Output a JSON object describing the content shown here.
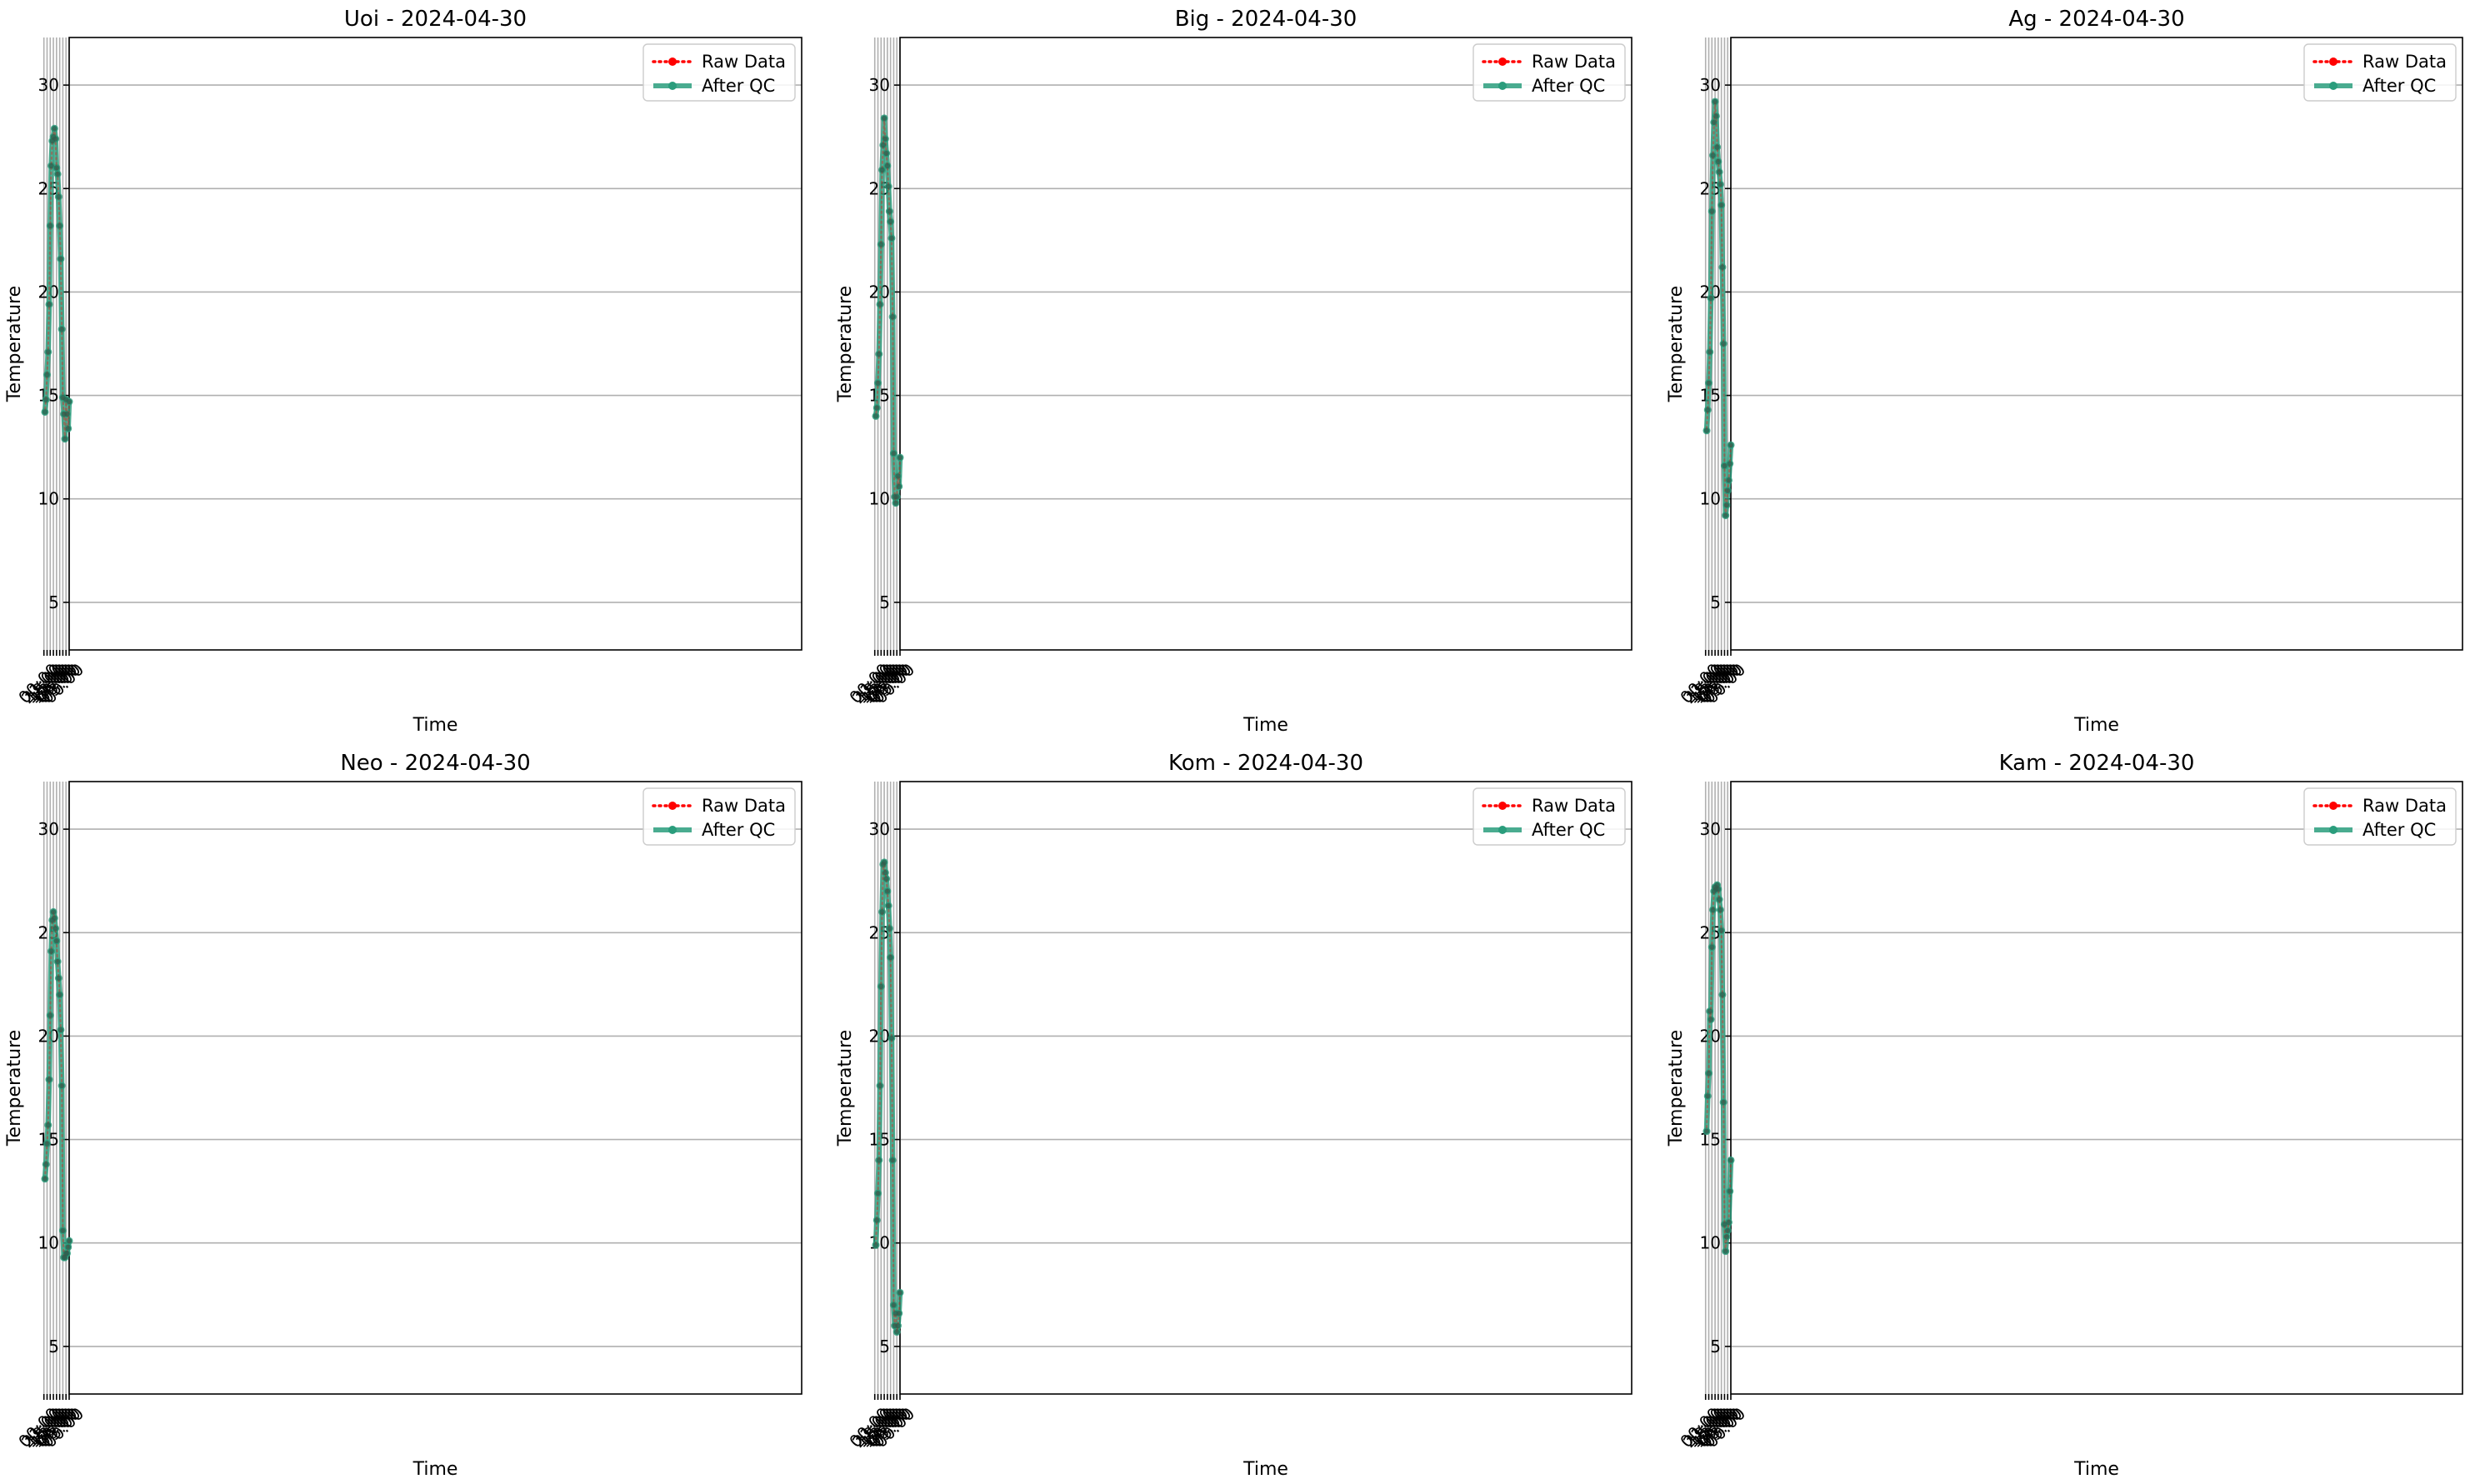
{
  "chart_data": [
    {
      "type": "line",
      "title": "Uoi - 2024-04-30",
      "xlabel": "Time",
      "ylabel": "Temperature",
      "x_ticks": [
        "00:00",
        "03:00",
        "06:00",
        "09:00",
        "12:00",
        "15:00",
        "18:00",
        "21:00",
        "00:00"
      ],
      "y_ticks": [
        5,
        10,
        15,
        20,
        25,
        30
      ],
      "ylim": [
        2.7,
        32.3
      ],
      "xlim": [
        "2024-04-30 00:00",
        "2024-05-01 00:00"
      ],
      "grid": true,
      "legend_position": "top-right",
      "x": [
        "00:00",
        "01:00",
        "02:00",
        "03:00",
        "04:00",
        "05:00",
        "06:00",
        "07:00",
        "08:00",
        "09:00",
        "10:00",
        "11:00",
        "12:00",
        "13:00",
        "14:00",
        "15:00",
        "16:00",
        "17:00",
        "18:00",
        "19:00",
        "20:00",
        "21:00",
        "22:00",
        "23:00"
      ],
      "series": [
        {
          "name": "Raw Data",
          "style": "dotted",
          "color": "#ff0000",
          "values": [
            14.7,
            13.4,
            14.1,
            14.8,
            12.9,
            14.1,
            14.9,
            18.2,
            21.6,
            23.2,
            24.6,
            25.7,
            26.0,
            27.4,
            27.9,
            27.5,
            27.3,
            26.1,
            23.2,
            19.4,
            17.1,
            16.0,
            14.8,
            14.2
          ]
        },
        {
          "name": "After QC",
          "style": "solid",
          "color": "#2a9d7c",
          "values": [
            14.7,
            13.4,
            14.1,
            14.8,
            12.9,
            14.1,
            14.9,
            18.2,
            21.6,
            23.2,
            24.6,
            25.7,
            26.0,
            27.4,
            27.9,
            27.5,
            27.3,
            26.1,
            23.2,
            19.4,
            17.1,
            16.0,
            14.8,
            14.2
          ]
        }
      ]
    },
    {
      "type": "line",
      "title": "Big - 2024-04-30",
      "xlabel": "Time",
      "ylabel": "Temperature",
      "x_ticks": [
        "00:00",
        "03:00",
        "06:00",
        "09:00",
        "12:00",
        "15:00",
        "18:00",
        "21:00",
        "00:00"
      ],
      "y_ticks": [
        5,
        10,
        15,
        20,
        25,
        30
      ],
      "ylim": [
        2.7,
        32.3
      ],
      "xlim": [
        "2024-04-30 00:00",
        "2024-05-01 00:00"
      ],
      "grid": true,
      "legend_position": "top-right",
      "x": [
        "00:00",
        "01:00",
        "02:00",
        "03:00",
        "04:00",
        "05:00",
        "06:00",
        "07:00",
        "08:00",
        "09:00",
        "10:00",
        "11:00",
        "12:00",
        "13:00",
        "14:00",
        "15:00",
        "16:00",
        "17:00",
        "18:00",
        "19:00",
        "20:00",
        "21:00",
        "22:00",
        "23:00"
      ],
      "series": [
        {
          "name": "Raw Data",
          "style": "dotted",
          "color": "#ff0000",
          "values": [
            12.0,
            10.6,
            11.1,
            10.1,
            9.8,
            10.1,
            12.2,
            18.8,
            22.6,
            23.4,
            23.9,
            25.1,
            26.1,
            26.7,
            27.4,
            28.4,
            27.1,
            25.9,
            22.3,
            19.4,
            17.0,
            15.6,
            14.4,
            14.0
          ]
        },
        {
          "name": "After QC",
          "style": "solid",
          "color": "#2a9d7c",
          "values": [
            12.0,
            10.6,
            11.1,
            10.1,
            9.8,
            10.1,
            12.2,
            18.8,
            22.6,
            23.4,
            23.9,
            25.1,
            26.1,
            26.7,
            27.4,
            28.4,
            27.1,
            25.9,
            22.3,
            19.4,
            17.0,
            15.6,
            14.4,
            14.0
          ]
        }
      ]
    },
    {
      "type": "line",
      "title": "Ag - 2024-04-30",
      "xlabel": "Time",
      "ylabel": "Temperature",
      "x_ticks": [
        "00:00",
        "03:00",
        "06:00",
        "09:00",
        "12:00",
        "15:00",
        "18:00",
        "21:00",
        "00:00"
      ],
      "y_ticks": [
        5,
        10,
        15,
        20,
        25,
        30
      ],
      "ylim": [
        2.7,
        32.3
      ],
      "xlim": [
        "2024-04-30 00:00",
        "2024-05-01 00:00"
      ],
      "grid": true,
      "legend_position": "top-right",
      "x": [
        "00:00",
        "01:00",
        "02:00",
        "03:00",
        "04:00",
        "05:00",
        "06:00",
        "07:00",
        "08:00",
        "09:00",
        "10:00",
        "11:00",
        "12:00",
        "13:00",
        "14:00",
        "15:00",
        "16:00",
        "17:00",
        "18:00",
        "19:00",
        "20:00",
        "21:00",
        "22:00",
        "23:00"
      ],
      "series": [
        {
          "name": "Raw Data",
          "style": "dotted",
          "color": "#ff0000",
          "values": [
            12.6,
            11.7,
            10.9,
            10.4,
            9.7,
            9.2,
            11.6,
            17.5,
            21.2,
            24.2,
            25.2,
            25.8,
            26.3,
            27.0,
            28.5,
            29.2,
            28.2,
            26.6,
            23.9,
            19.7,
            17.1,
            15.6,
            14.3,
            13.3
          ]
        },
        {
          "name": "After QC",
          "style": "solid",
          "color": "#2a9d7c",
          "values": [
            12.6,
            11.7,
            10.9,
            10.4,
            9.7,
            9.2,
            11.6,
            17.5,
            21.2,
            24.2,
            25.2,
            25.8,
            26.3,
            27.0,
            28.5,
            29.2,
            28.2,
            26.6,
            23.9,
            19.7,
            17.1,
            15.6,
            14.3,
            13.3
          ]
        }
      ]
    },
    {
      "type": "line",
      "title": "Neo - 2024-04-30",
      "xlabel": "Time",
      "ylabel": "Temperature",
      "x_ticks": [
        "00:00",
        "03:00",
        "06:00",
        "09:00",
        "12:00",
        "15:00",
        "18:00",
        "21:00",
        "00:00"
      ],
      "y_ticks": [
        5,
        10,
        15,
        20,
        25,
        30
      ],
      "ylim": [
        2.7,
        32.3
      ],
      "xlim": [
        "2024-04-30 00:00",
        "2024-05-01 00:00"
      ],
      "grid": true,
      "legend_position": "top-right",
      "x": [
        "00:00",
        "01:00",
        "02:00",
        "03:00",
        "04:00",
        "05:00",
        "06:00",
        "07:00",
        "08:00",
        "09:00",
        "10:00",
        "11:00",
        "12:00",
        "13:00",
        "14:00",
        "15:00",
        "16:00",
        "17:00",
        "18:00",
        "19:00",
        "20:00",
        "21:00",
        "22:00",
        "23:00"
      ],
      "series": [
        {
          "name": "Raw Data",
          "style": "dotted",
          "color": "#ff0000",
          "values": [
            10.1,
            9.8,
            9.5,
            9.5,
            9.3,
            9.3,
            10.6,
            17.6,
            20.3,
            22.0,
            22.8,
            23.6,
            24.6,
            25.2,
            25.7,
            26.0,
            25.6,
            24.1,
            21.0,
            17.9,
            15.7,
            14.8,
            13.8,
            13.1
          ]
        },
        {
          "name": "After QC",
          "style": "solid",
          "color": "#2a9d7c",
          "values": [
            10.1,
            9.8,
            9.5,
            9.5,
            9.3,
            9.3,
            10.6,
            17.6,
            20.3,
            22.0,
            22.8,
            23.6,
            24.6,
            25.2,
            25.7,
            26.0,
            25.6,
            24.1,
            21.0,
            17.9,
            15.7,
            14.8,
            13.8,
            13.1
          ]
        }
      ]
    },
    {
      "type": "line",
      "title": "Kom - 2024-04-30",
      "xlabel": "Time",
      "ylabel": "Temperature",
      "x_ticks": [
        "00:00",
        "03:00",
        "06:00",
        "09:00",
        "12:00",
        "15:00",
        "18:00",
        "21:00",
        "00:00"
      ],
      "y_ticks": [
        5,
        10,
        15,
        20,
        25,
        30
      ],
      "ylim": [
        2.7,
        32.3
      ],
      "xlim": [
        "2024-04-30 00:00",
        "2024-05-01 00:00"
      ],
      "grid": true,
      "legend_position": "top-right",
      "x": [
        "00:00",
        "01:00",
        "02:00",
        "03:00",
        "04:00",
        "05:00",
        "06:00",
        "07:00",
        "08:00",
        "09:00",
        "10:00",
        "11:00",
        "12:00",
        "13:00",
        "14:00",
        "15:00",
        "16:00",
        "17:00",
        "18:00",
        "19:00",
        "20:00",
        "21:00",
        "22:00",
        "23:00"
      ],
      "series": [
        {
          "name": "Raw Data",
          "style": "dotted",
          "color": "#ff0000",
          "values": [
            7.6,
            6.6,
            6.0,
            5.7,
            6.6,
            6.0,
            7.0,
            14.0,
            19.9,
            23.8,
            25.2,
            26.3,
            27.0,
            27.6,
            27.9,
            28.4,
            28.3,
            26.0,
            22.4,
            17.6,
            14.0,
            12.4,
            11.1,
            9.9
          ]
        },
        {
          "name": "After QC",
          "style": "solid",
          "color": "#2a9d7c",
          "values": [
            7.6,
            6.6,
            6.0,
            5.7,
            6.6,
            6.0,
            7.0,
            14.0,
            19.9,
            23.8,
            25.2,
            26.3,
            27.0,
            27.6,
            27.9,
            28.4,
            28.3,
            26.0,
            22.4,
            17.6,
            14.0,
            12.4,
            11.1,
            9.9
          ]
        }
      ]
    },
    {
      "type": "line",
      "title": "Kam - 2024-04-30",
      "xlabel": "Time",
      "ylabel": "Temperature",
      "x_ticks": [
        "00:00",
        "03:00",
        "06:00",
        "09:00",
        "12:00",
        "15:00",
        "18:00",
        "21:00",
        "00:00"
      ],
      "y_ticks": [
        5,
        10,
        15,
        20,
        25,
        30
      ],
      "ylim": [
        2.7,
        32.3
      ],
      "xlim": [
        "2024-04-30 00:00",
        "2024-05-01 00:00"
      ],
      "grid": true,
      "legend_position": "top-right",
      "x": [
        "00:00",
        "01:00",
        "02:00",
        "03:00",
        "04:00",
        "05:00",
        "06:00",
        "07:00",
        "08:00",
        "09:00",
        "10:00",
        "11:00",
        "12:00",
        "13:00",
        "14:00",
        "15:00",
        "16:00",
        "17:00",
        "18:00",
        "19:00",
        "20:00",
        "21:00",
        "22:00",
        "23:00"
      ],
      "series": [
        {
          "name": "Raw Data",
          "style": "dotted",
          "color": "#ff0000",
          "values": [
            14.0,
            12.5,
            11.0,
            10.6,
            10.3,
            9.6,
            10.9,
            16.8,
            22.0,
            25.1,
            26.1,
            26.6,
            27.1,
            27.3,
            27.1,
            27.2,
            27.0,
            26.1,
            24.3,
            20.8,
            21.2,
            18.2,
            17.1,
            15.4
          ]
        },
        {
          "name": "After QC",
          "style": "solid",
          "color": "#2a9d7c",
          "values": [
            14.0,
            12.5,
            11.0,
            10.6,
            10.3,
            9.6,
            10.9,
            16.8,
            22.0,
            25.1,
            26.1,
            26.6,
            27.1,
            27.3,
            27.1,
            27.2,
            27.0,
            26.1,
            24.3,
            20.8,
            21.2,
            18.2,
            17.1,
            15.4
          ]
        }
      ]
    }
  ]
}
